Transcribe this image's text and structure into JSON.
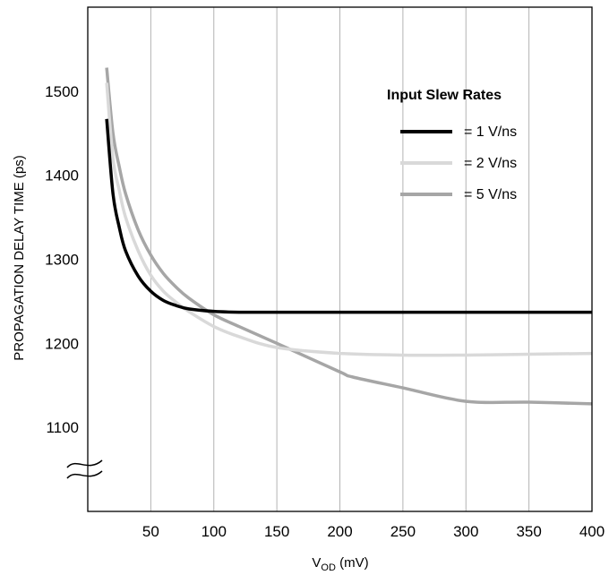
{
  "chart_data": {
    "type": "line",
    "xlabel_main": "V",
    "xlabel_sub": "OD",
    "xlabel_unit": " (mV)",
    "ylabel": "PROPAGATION DELAY TIME (ps)",
    "xlim": [
      0,
      400
    ],
    "ylim": [
      1000,
      1600
    ],
    "x_ticks": [
      50,
      100,
      150,
      200,
      250,
      300,
      350,
      400
    ],
    "y_ticks": [
      1100,
      1200,
      1300,
      1400,
      1500
    ],
    "axis_break": "≈",
    "grid": "vertical",
    "legend": {
      "title": "Input Slew Rates",
      "placement": "top-right",
      "entries": [
        "= 1 V/ns",
        "= 2 V/ns",
        "= 5 V/ns"
      ]
    },
    "series": [
      {
        "color": "#000000",
        "x": [
          15,
          20,
          25,
          30,
          40,
          50,
          60,
          70,
          80,
          100,
          120,
          150,
          200,
          250,
          300,
          350,
          400
        ],
        "y": [
          1467,
          1378,
          1338,
          1310,
          1280,
          1262,
          1251,
          1245,
          1241,
          1238,
          1237,
          1237,
          1237,
          1237,
          1237,
          1237,
          1237
        ]
      },
      {
        "color": "#d9d9d9",
        "x": [
          15,
          20,
          25,
          30,
          40,
          50,
          60,
          70,
          80,
          100,
          120,
          150,
          200,
          250,
          300,
          350,
          400
        ],
        "y": [
          1510,
          1420,
          1382,
          1350,
          1310,
          1281,
          1262,
          1249,
          1238,
          1220,
          1208,
          1195,
          1188,
          1186,
          1186,
          1187,
          1188
        ]
      },
      {
        "color": "#a6a6a6",
        "x": [
          15,
          20,
          25,
          30,
          40,
          50,
          60,
          70,
          80,
          100,
          120,
          150,
          200,
          210,
          250,
          300,
          350,
          400
        ],
        "y": [
          1528,
          1450,
          1410,
          1378,
          1335,
          1305,
          1283,
          1267,
          1254,
          1234,
          1220,
          1200,
          1166,
          1160,
          1147,
          1131,
          1130,
          1128
        ]
      }
    ]
  }
}
